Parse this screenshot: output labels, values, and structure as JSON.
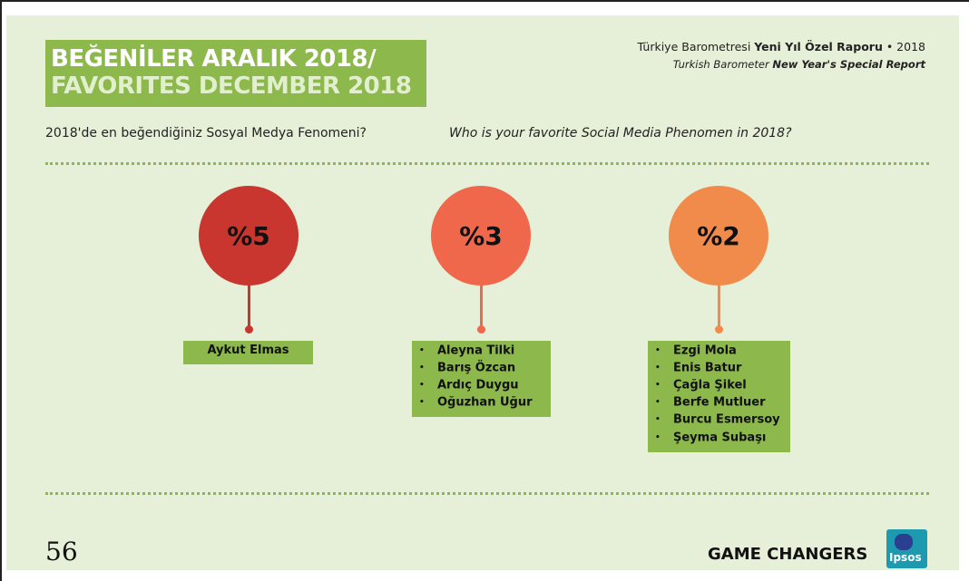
{
  "header": {
    "title": [
      "BEĞENİLER ARALIK 2018/",
      "FAVORITES DECEMBER 2018"
    ],
    "report_tr": [
      "Türkiye Barometresi ",
      "Yeni Yıl Özel Raporu",
      " • 2018"
    ],
    "report_en": [
      "Turkish Barometer ",
      "New Year's Special Report"
    ]
  },
  "question": {
    "tr": "2018'de en beğendiğiniz Sosyal Medya Fenomeni?",
    "en": "Who is your favorite Social Media Phenomen in 2018?"
  },
  "groups": [
    {
      "percent": "%5",
      "names": [
        "Aykut Elmas"
      ]
    },
    {
      "percent": "%3",
      "names": [
        "Aleyna Tilki",
        "Barış Özcan",
        "Ardıç Duygu",
        "Oğuzhan Uğur"
      ]
    },
    {
      "percent": "%2",
      "names": [
        "Ezgi Mola",
        "Enis Batur",
        "Çağla Şikel",
        "Berfe Mutluer",
        "Burcu Esmersoy",
        "Şeyma Subaşı"
      ]
    }
  ],
  "footer": {
    "page": "56",
    "tagline": "GAME CHANGERS",
    "logo": "Ipsos"
  }
}
